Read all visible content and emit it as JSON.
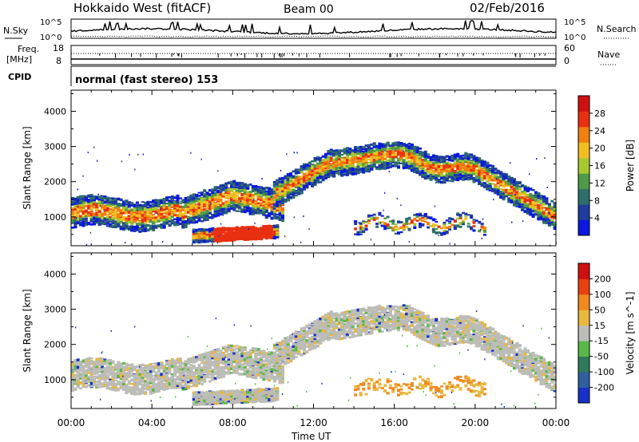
{
  "header": {
    "title": "Hokkaido West (fitACF)",
    "beam": "Beam 00",
    "date": "02/Feb/2016"
  },
  "top_panels": {
    "nsky_label": "N.Sky",
    "nsky_ticks": [
      "10^5",
      "10^0"
    ],
    "nsearch_label": "N.Search",
    "freq_label_1": "Freq.",
    "freq_label_2": "[MHz]",
    "freq_ticks": [
      "18",
      "8"
    ],
    "nave_ticks": [
      "60",
      "0"
    ],
    "nave_label": "Nave",
    "cpid_label": "CPID",
    "cpid_value": "normal (fast stereo) 153"
  },
  "chart_data": [
    {
      "type": "heatmap",
      "name": "power",
      "ylabel": "Slant Range [km]",
      "y_ticks": [
        1000,
        2000,
        3000,
        4000
      ],
      "ylim": [
        180,
        4600
      ],
      "xlim": [
        0,
        24
      ],
      "x_tick_labels": [
        "00:00",
        "04:00",
        "08:00",
        "12:00",
        "16:00",
        "20:00",
        "00:00"
      ],
      "colorbar": {
        "label": "Power [dB]",
        "ticks": [
          "4",
          "8",
          "12",
          "16",
          "20",
          "24",
          "28"
        ],
        "colors": [
          "#0a18e0",
          "#203c9c",
          "#2e6f6a",
          "#4e9a46",
          "#a8c830",
          "#f0c020",
          "#f08010",
          "#e83010",
          "#d01010"
        ]
      }
    },
    {
      "type": "heatmap",
      "name": "velocity",
      "ylabel": "Slant Range [km]",
      "y_ticks": [
        1000,
        2000,
        3000,
        4000
      ],
      "ylim": [
        180,
        4600
      ],
      "xlim": [
        0,
        24
      ],
      "x_tick_labels": [
        "00:00",
        "04:00",
        "08:00",
        "12:00",
        "16:00",
        "20:00",
        "00:00"
      ],
      "xlabel": "Time UT",
      "colorbar": {
        "label": "Velocity [m s^-1]",
        "ticks": [
          "200",
          "100",
          "50",
          "15",
          "-15",
          "-50",
          "-100",
          "-200"
        ],
        "colors": [
          "#1830c8",
          "#2e60a0",
          "#2f7a5a",
          "#58b848",
          "#bcbcb8",
          "#e8b840",
          "#f08a20",
          "#e84010",
          "#d01010"
        ]
      }
    }
  ]
}
